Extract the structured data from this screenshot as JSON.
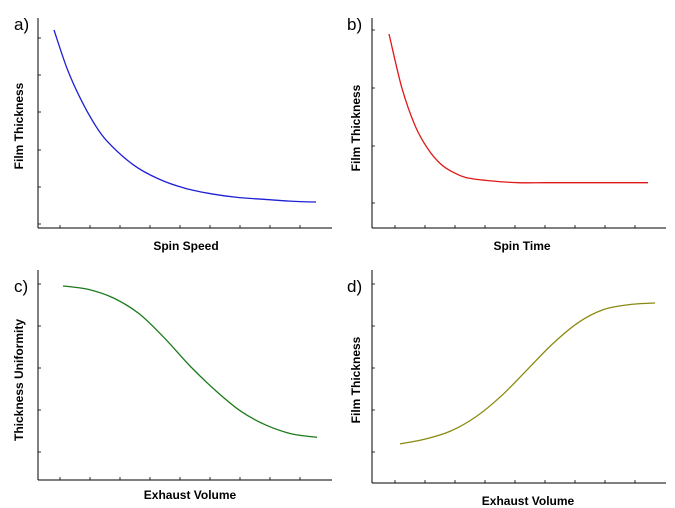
{
  "chart_data": [
    {
      "type": "line",
      "panel_label": "a)",
      "xlabel": "Spin Speed",
      "ylabel": "Film Thickness",
      "color": "#1f1fd6",
      "xlim": [
        0,
        1
      ],
      "ylim": [
        0,
        1
      ],
      "grid": false,
      "x": [
        0,
        0.05,
        0.1,
        0.15,
        0.2,
        0.3,
        0.4,
        0.5,
        0.6,
        0.7,
        0.8,
        0.9,
        1.0
      ],
      "y": [
        1.0,
        0.79,
        0.63,
        0.5,
        0.4,
        0.27,
        0.19,
        0.14,
        0.11,
        0.09,
        0.08,
        0.07,
        0.065
      ]
    },
    {
      "type": "line",
      "panel_label": "b)",
      "xlabel": "Spin Time",
      "ylabel": "Film Thickness",
      "color": "#e01818",
      "xlim": [
        0,
        1
      ],
      "ylim": [
        0,
        1
      ],
      "grid": false,
      "x": [
        0,
        0.05,
        0.1,
        0.15,
        0.2,
        0.25,
        0.3,
        0.4,
        0.5,
        0.6,
        0.7,
        0.8,
        0.9,
        1.0
      ],
      "y": [
        1.0,
        0.68,
        0.46,
        0.32,
        0.23,
        0.18,
        0.15,
        0.13,
        0.12,
        0.12,
        0.12,
        0.12,
        0.12,
        0.12
      ]
    },
    {
      "type": "line",
      "panel_label": "c)",
      "xlabel": "Exhaust Volume",
      "ylabel": "Thickness Uniformity",
      "color": "#1b7a1b",
      "xlim": [
        0,
        1
      ],
      "ylim": [
        0,
        1
      ],
      "grid": false,
      "x": [
        0,
        0.1,
        0.2,
        0.3,
        0.4,
        0.5,
        0.6,
        0.7,
        0.8,
        0.9,
        1.0
      ],
      "y": [
        0.96,
        0.94,
        0.89,
        0.8,
        0.66,
        0.5,
        0.36,
        0.24,
        0.16,
        0.11,
        0.09
      ]
    },
    {
      "type": "line",
      "panel_label": "d)",
      "xlabel": "Exhaust Volume",
      "ylabel": "Film Thickness",
      "color": "#8a8a10",
      "xlim": [
        0,
        1
      ],
      "ylim": [
        0,
        1
      ],
      "grid": false,
      "x": [
        0,
        0.1,
        0.2,
        0.3,
        0.4,
        0.5,
        0.6,
        0.7,
        0.8,
        0.9,
        1.0
      ],
      "y": [
        0.05,
        0.08,
        0.13,
        0.22,
        0.35,
        0.51,
        0.67,
        0.8,
        0.88,
        0.91,
        0.92
      ]
    }
  ]
}
